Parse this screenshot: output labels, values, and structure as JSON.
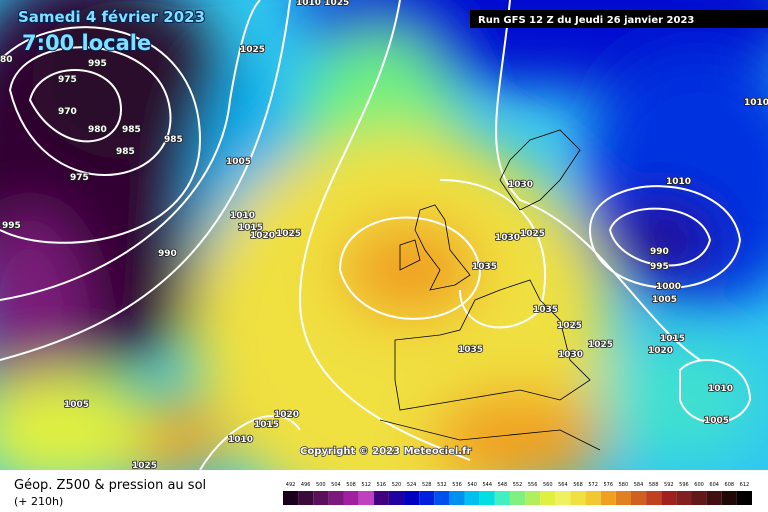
{
  "header": {
    "date": "Samedi 4 février 2023",
    "time": "7:00 locale",
    "run": "Run GFS 12 Z du Jeudi 26 janvier 2023"
  },
  "copyright": "Copyright © 2023 Meteociel.fr",
  "footer": {
    "title": "Géop. Z500 & pression au sol",
    "lead": "(+ 210h)"
  },
  "isobar_labels": [
    "1010 1025",
    1025,
    995,
    "80",
    975,
    970,
    980,
    985,
    985,
    985,
    975,
    995,
    1005,
    1010,
    1015,
    1020,
    1025,
    990,
    1025,
    1030,
    1030,
    1025,
    1035,
    1010,
    990,
    995,
    1000,
    1005,
    1035,
    1025,
    1035,
    1030,
    1025,
    1020,
    1015,
    1010,
    1005,
    1005,
    1020,
    1015,
    1010,
    1025,
    1010
  ],
  "colorbar": {
    "values": [
      492,
      496,
      500,
      504,
      508,
      512,
      516,
      520,
      524,
      528,
      532,
      536,
      540,
      544,
      548,
      552,
      556,
      560,
      564,
      568,
      572,
      576,
      580,
      584,
      588,
      592,
      596,
      600,
      604,
      608,
      612
    ],
    "colors": [
      "#1a001a",
      "#3a0a3a",
      "#5a105a",
      "#7a1a7a",
      "#a020a0",
      "#c040c0",
      "#400080",
      "#2000a0",
      "#0000c0",
      "#0020e0",
      "#0050f0",
      "#0090f0",
      "#00c0f0",
      "#00e0e0",
      "#40f0c0",
      "#80f080",
      "#b0f060",
      "#e0f040",
      "#f0f060",
      "#f0e040",
      "#f0c830",
      "#f0a020",
      "#e08020",
      "#d06020",
      "#c04020",
      "#a02020",
      "#802020",
      "#601818",
      "#401010",
      "#200808",
      "#000000"
    ]
  }
}
